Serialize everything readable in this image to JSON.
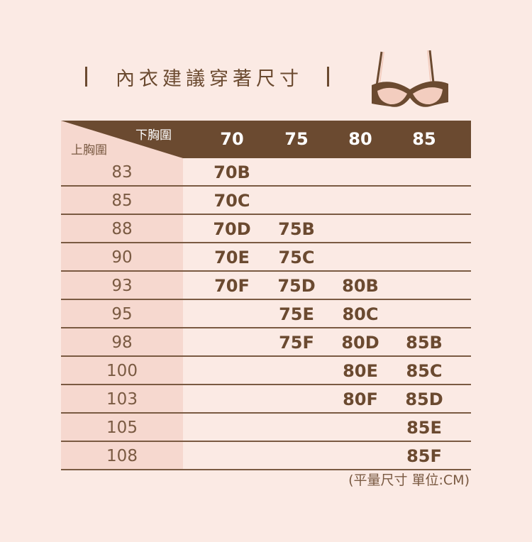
{
  "title": "內衣建議穿著尺寸",
  "header": {
    "under_bust_label": "下胸圍",
    "over_bust_label": "上胸圍",
    "columns": [
      "70",
      "75",
      "80",
      "85"
    ]
  },
  "rows": [
    {
      "label": "83",
      "cells": [
        "70B",
        "",
        "",
        ""
      ]
    },
    {
      "label": "85",
      "cells": [
        "70C",
        "",
        "",
        ""
      ]
    },
    {
      "label": "88",
      "cells": [
        "70D",
        "75B",
        "",
        ""
      ]
    },
    {
      "label": "90",
      "cells": [
        "70E",
        "75C",
        "",
        ""
      ]
    },
    {
      "label": "93",
      "cells": [
        "70F",
        "75D",
        "80B",
        ""
      ]
    },
    {
      "label": "95",
      "cells": [
        "",
        "75E",
        "80C",
        ""
      ]
    },
    {
      "label": "98",
      "cells": [
        "",
        "75F",
        "80D",
        "85B"
      ]
    },
    {
      "label": "100",
      "cells": [
        "",
        "",
        "80E",
        "85C"
      ]
    },
    {
      "label": "103",
      "cells": [
        "",
        "",
        "80F",
        "85D"
      ]
    },
    {
      "label": "105",
      "cells": [
        "",
        "",
        "",
        "85E"
      ]
    },
    {
      "label": "108",
      "cells": [
        "",
        "",
        "",
        "85F"
      ]
    }
  ],
  "note": "(平量尺寸  單位:CM)",
  "colors": {
    "brand_brown": "#6b4a30",
    "background": "#fbeae4",
    "label_column": "#f6d8cf"
  },
  "icons": {
    "illustration": "bra-icon"
  }
}
